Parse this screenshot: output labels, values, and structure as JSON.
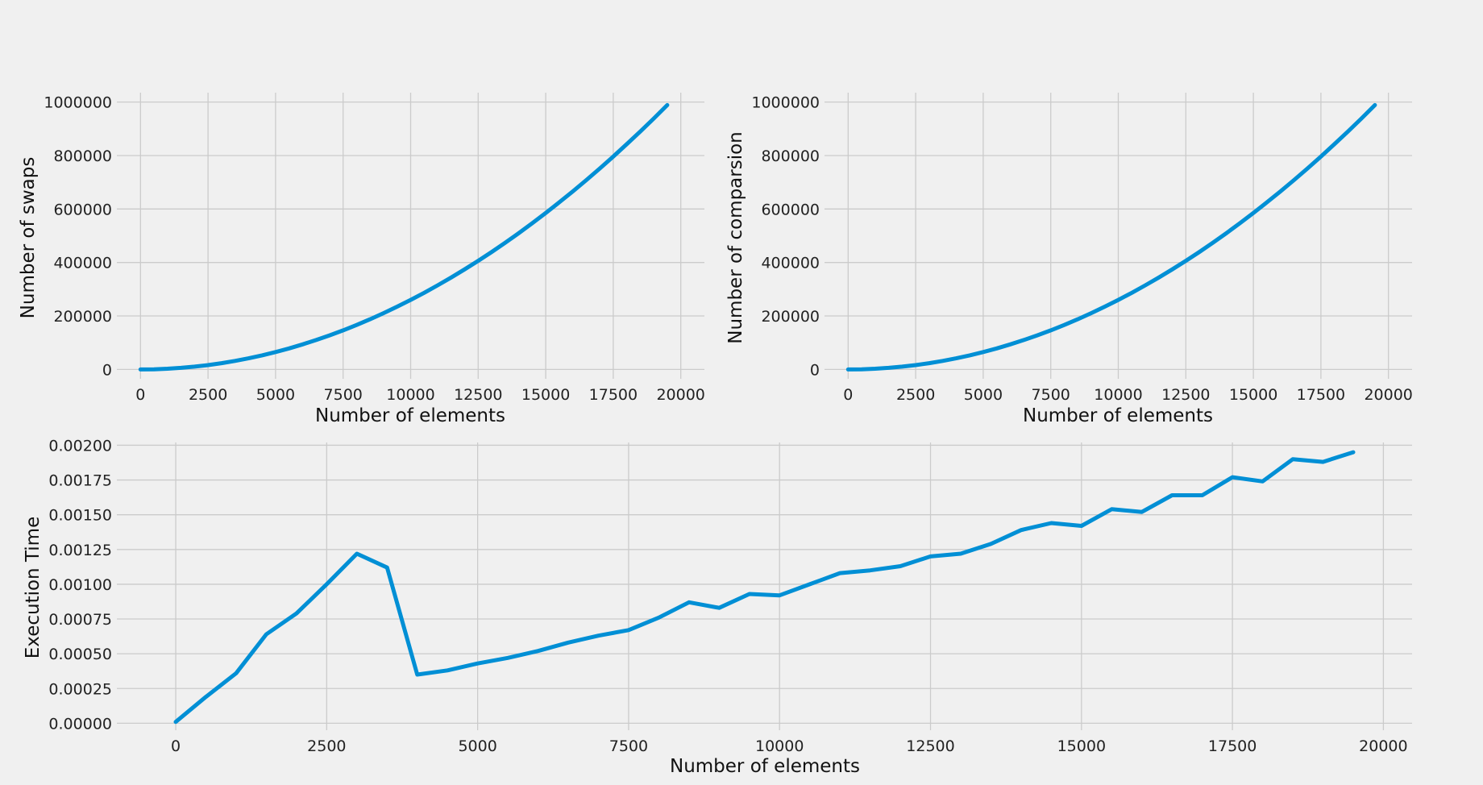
{
  "chart_data": [
    {
      "type": "line",
      "xlabel": "Number of elements",
      "ylabel": "Number of swaps",
      "xlim": [
        -875,
        20875
      ],
      "ylim": [
        -35000,
        1035000
      ],
      "xticks": [
        0,
        2500,
        5000,
        7500,
        10000,
        12500,
        15000,
        17500,
        20000
      ],
      "xtick_labels": [
        "0",
        "2500",
        "5000",
        "7500",
        "10000",
        "12500",
        "15000",
        "17500",
        "20000"
      ],
      "yticks": [
        0,
        200000,
        400000,
        600000,
        800000,
        1000000
      ],
      "ytick_labels": [
        "0",
        "200000",
        "400000",
        "600000",
        "800000",
        "1000000"
      ],
      "grid": true,
      "series": [
        {
          "name": "swaps",
          "x": [
            0,
            500,
            1000,
            1500,
            2000,
            2500,
            3000,
            3500,
            4000,
            4500,
            5000,
            5500,
            6000,
            6500,
            7000,
            7500,
            8000,
            8500,
            9000,
            9500,
            10000,
            10500,
            11000,
            11500,
            12000,
            12500,
            13000,
            13500,
            14000,
            14500,
            15000,
            15500,
            16000,
            16500,
            17000,
            17500,
            18000,
            18500,
            19000,
            19500
          ],
          "y": [
            0,
            650,
            2600,
            5850,
            10400,
            16250,
            23400,
            31850,
            41600,
            52650,
            65000,
            78650,
            93600,
            109850,
            127400,
            146250,
            166400,
            187850,
            210600,
            234650,
            260000,
            286650,
            314600,
            343850,
            374400,
            406250,
            439400,
            473850,
            509600,
            546650,
            585000,
            624650,
            665600,
            707850,
            751400,
            796250,
            842400,
            889850,
            938600,
            988650
          ]
        }
      ]
    },
    {
      "type": "line",
      "xlabel": "Number of elements",
      "ylabel": "Number of comparsion",
      "xlim": [
        -875,
        20875
      ],
      "ylim": [
        -35000,
        1035000
      ],
      "xticks": [
        0,
        2500,
        5000,
        7500,
        10000,
        12500,
        15000,
        17500,
        20000
      ],
      "xtick_labels": [
        "0",
        "2500",
        "5000",
        "7500",
        "10000",
        "12500",
        "15000",
        "17500",
        "20000"
      ],
      "yticks": [
        0,
        200000,
        400000,
        600000,
        800000,
        1000000
      ],
      "ytick_labels": [
        "0",
        "200000",
        "400000",
        "600000",
        "800000",
        "1000000"
      ],
      "grid": true,
      "series": [
        {
          "name": "comparisons",
          "x": [
            0,
            500,
            1000,
            1500,
            2000,
            2500,
            3000,
            3500,
            4000,
            4500,
            5000,
            5500,
            6000,
            6500,
            7000,
            7500,
            8000,
            8500,
            9000,
            9500,
            10000,
            10500,
            11000,
            11500,
            12000,
            12500,
            13000,
            13500,
            14000,
            14500,
            15000,
            15500,
            16000,
            16500,
            17000,
            17500,
            18000,
            18500,
            19000,
            19500
          ],
          "y": [
            0,
            650,
            2600,
            5850,
            10400,
            16250,
            23400,
            31850,
            41600,
            52650,
            65000,
            78650,
            93600,
            109850,
            127400,
            146250,
            166400,
            187850,
            210600,
            234650,
            260000,
            286650,
            314600,
            343850,
            374400,
            406250,
            439400,
            473850,
            509600,
            546650,
            585000,
            624650,
            665600,
            707850,
            751400,
            796250,
            842400,
            889850,
            938600,
            988650
          ]
        }
      ]
    },
    {
      "type": "line",
      "xlabel": "Number of elements",
      "ylabel": "Execution Time",
      "xlim": [
        -975,
        20475
      ],
      "ylim": [
        -5e-05,
        0.00202
      ],
      "xticks": [
        0,
        2500,
        5000,
        7500,
        10000,
        12500,
        15000,
        17500,
        20000
      ],
      "xtick_labels": [
        "0",
        "2500",
        "5000",
        "7500",
        "10000",
        "12500",
        "15000",
        "17500",
        "20000"
      ],
      "yticks": [
        0,
        0.00025,
        0.0005,
        0.00075,
        0.001,
        0.00125,
        0.0015,
        0.00175,
        0.002
      ],
      "ytick_labels": [
        "0.00000",
        "0.00025",
        "0.00050",
        "0.00075",
        "0.00100",
        "0.00125",
        "0.00150",
        "0.00175",
        "0.00200"
      ],
      "grid": true,
      "series": [
        {
          "name": "execution_time",
          "x": [
            0,
            500,
            1000,
            1500,
            2000,
            2500,
            3000,
            3500,
            4000,
            4500,
            5000,
            5500,
            6000,
            6500,
            7000,
            7500,
            8000,
            8500,
            9000,
            9500,
            10000,
            10500,
            11000,
            11500,
            12000,
            12500,
            13000,
            13500,
            14000,
            14500,
            15000,
            15500,
            16000,
            16500,
            17000,
            17500,
            18000,
            18500,
            19000,
            19500
          ],
          "y": [
            1e-05,
            0.00019,
            0.00036,
            0.00064,
            0.00079,
            0.001,
            0.00122,
            0.00112,
            0.00035,
            0.00038,
            0.00043,
            0.00047,
            0.00052,
            0.00058,
            0.00063,
            0.00067,
            0.00076,
            0.00087,
            0.00083,
            0.00093,
            0.00092,
            0.001,
            0.00108,
            0.0011,
            0.00113,
            0.0012,
            0.00122,
            0.00129,
            0.00139,
            0.00144,
            0.00142,
            0.00154,
            0.00152,
            0.00164,
            0.00164,
            0.00177,
            0.00174,
            0.0019,
            0.00188,
            0.00195
          ]
        }
      ]
    }
  ]
}
